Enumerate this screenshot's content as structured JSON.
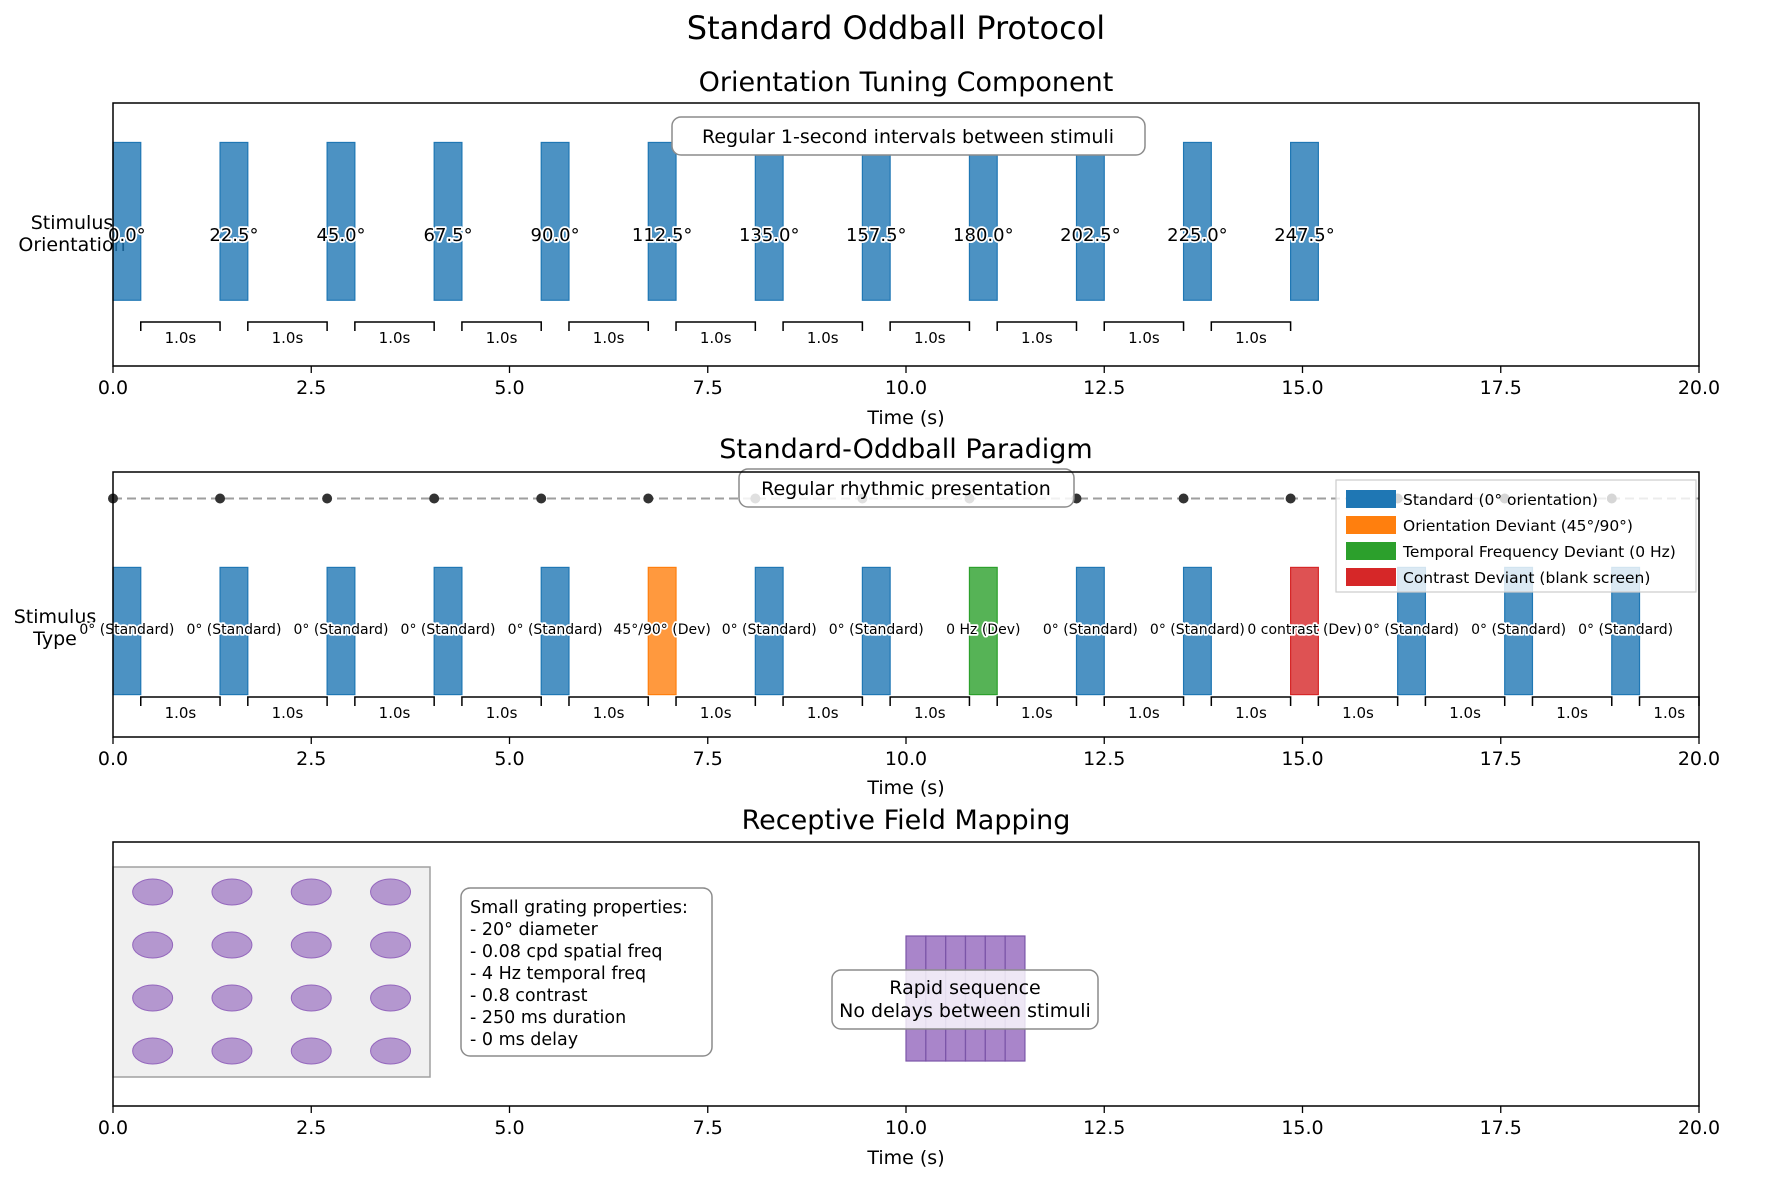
{
  "figure": {
    "suptitle": "Standard Oddball Protocol"
  },
  "colors": {
    "standard": "#1f77b4",
    "orientation_deviant": "#ff7f0e",
    "temporal_deviant": "#2ca02c",
    "contrast_deviant": "#d62728",
    "rf": "#9467bd",
    "timing_dot": "#333333",
    "timing_line": "#9e9e9e",
    "annotation_border": "#8c8c8c",
    "rf_grid_bg": "#f0f0f0"
  },
  "chart_data": [
    {
      "id": "orientation",
      "type": "bar",
      "title": "Orientation Tuning Component",
      "xlabel": "Time (s)",
      "ylabel": "Stimulus\nOrientation",
      "xlim": [
        0,
        20
      ],
      "xticks": [
        "0.0",
        "2.5",
        "5.0",
        "7.5",
        "10.0",
        "12.5",
        "15.0",
        "17.5",
        "20.0"
      ],
      "xtick_values": [
        0,
        2.5,
        5,
        7.5,
        10,
        12.5,
        15,
        17.5,
        20
      ],
      "stimulus_duration": 0.35,
      "bar_y_range": [
        0.25,
        0.85
      ],
      "series": [
        {
          "name": "Orientation",
          "starts": [
            0,
            1.35,
            2.7,
            4.05,
            5.4,
            6.75,
            8.1,
            9.45,
            10.8,
            12.15,
            13.5,
            14.85
          ],
          "labels": [
            "0.0°",
            "22.5°",
            "45.0°",
            "67.5°",
            "90.0°",
            "112.5°",
            "135.0°",
            "157.5°",
            "180.0°",
            "202.5°",
            "225.0°",
            "247.5°"
          ]
        }
      ],
      "intervals": {
        "label": "1.0s",
        "from_stim_end": true,
        "count": 11
      },
      "annotation": "Regular 1-second intervals between stimuli"
    },
    {
      "id": "oddball",
      "type": "bar",
      "title": "Standard-Oddball Paradigm",
      "xlabel": "Time (s)",
      "ylabel": "Stimulus\nType",
      "xlim": [
        0,
        20
      ],
      "xticks": [
        "0.0",
        "2.5",
        "5.0",
        "7.5",
        "10.0",
        "12.5",
        "15.0",
        "17.5",
        "20.0"
      ],
      "xtick_values": [
        0,
        2.5,
        5,
        7.5,
        10,
        12.5,
        15,
        17.5,
        20
      ],
      "stimulus_duration": 0.35,
      "bar_y_range": [
        0.16,
        0.64
      ],
      "stimuli": [
        {
          "t": 0.0,
          "kind": "standard",
          "label": "0° (Standard)"
        },
        {
          "t": 1.35,
          "kind": "standard",
          "label": "0° (Standard)"
        },
        {
          "t": 2.7,
          "kind": "standard",
          "label": "0° (Standard)"
        },
        {
          "t": 4.05,
          "kind": "standard",
          "label": "0° (Standard)"
        },
        {
          "t": 5.4,
          "kind": "standard",
          "label": "0° (Standard)"
        },
        {
          "t": 6.75,
          "kind": "orientation",
          "label": "45°/90° (Dev)"
        },
        {
          "t": 8.1,
          "kind": "standard",
          "label": "0° (Standard)"
        },
        {
          "t": 9.45,
          "kind": "standard",
          "label": "0° (Standard)"
        },
        {
          "t": 10.8,
          "kind": "temporal",
          "label": "0 Hz (Dev)"
        },
        {
          "t": 12.15,
          "kind": "standard",
          "label": "0° (Standard)"
        },
        {
          "t": 13.5,
          "kind": "standard",
          "label": "0° (Standard)"
        },
        {
          "t": 14.85,
          "kind": "contrast",
          "label": "0 contrast (Dev)"
        },
        {
          "t": 16.2,
          "kind": "standard",
          "label": "0° (Standard)"
        },
        {
          "t": 17.55,
          "kind": "standard",
          "label": "0° (Standard)"
        },
        {
          "t": 18.9,
          "kind": "standard",
          "label": "0° (Standard)"
        }
      ],
      "intervals": {
        "label": "1.0s",
        "count": 15
      },
      "timing_dots_y": 0.9,
      "annotation": "Regular rhythmic presentation",
      "legend": {
        "position": "upper right",
        "entries": [
          {
            "label": "Standard (0° orientation)",
            "kind": "standard"
          },
          {
            "label": "Orientation Deviant (45°/90°)",
            "kind": "orientation"
          },
          {
            "label": "Temporal Frequency Deviant (0 Hz)",
            "kind": "temporal"
          },
          {
            "label": "Contrast Deviant (blank screen)",
            "kind": "contrast"
          }
        ]
      }
    },
    {
      "id": "rf",
      "type": "bar",
      "title": "Receptive Field Mapping",
      "xlabel": "Time (s)",
      "xlim": [
        0,
        20
      ],
      "xticks": [
        "0.0",
        "2.5",
        "5.0",
        "7.5",
        "10.0",
        "12.5",
        "15.0",
        "17.5",
        "20.0"
      ],
      "xtick_values": [
        0,
        2.5,
        5,
        7.5,
        10,
        12.5,
        15,
        17.5,
        20
      ],
      "rf_grid": {
        "x_range": [
          0,
          4
        ],
        "rows": 4,
        "cols": 4,
        "centers_x": [
          0.5,
          1.5,
          2.5,
          3.5
        ]
      },
      "rapid_sequence": {
        "start": 10.0,
        "step": 0.25,
        "count": 6
      },
      "properties_box": [
        "Small grating properties:",
        "- 20° diameter",
        "- 0.08 cpd spatial freq",
        "- 4 Hz temporal freq",
        "- 0.8 contrast",
        "- 250 ms duration",
        "- 0 ms delay"
      ],
      "annotation": [
        "Rapid sequence",
        "No delays between stimuli"
      ]
    }
  ]
}
